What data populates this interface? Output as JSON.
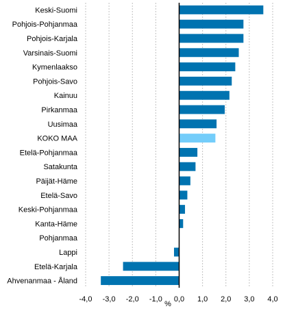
{
  "chart_data": {
    "type": "bar",
    "orientation": "horizontal",
    "title": "",
    "xlabel": "%",
    "ylabel": "",
    "xlim": [
      -4.0,
      4.0
    ],
    "x_ticks": [
      "-4,0",
      "-3,0",
      "-2,0",
      "-1,0",
      "0,0",
      "1,0",
      "2,0",
      "3,0",
      "4,0"
    ],
    "grid": "vertical-dashed",
    "legend": "none",
    "categories": [
      "Keski-Suomi",
      "Pohjois-Pohjanmaa",
      "Pohjois-Karjala",
      "Varsinais-Suomi",
      "Kymenlaakso",
      "Pohjois-Savo",
      "Kainuu",
      "Pirkanmaa",
      "Uusimaa",
      "KOKO MAA",
      "Etelä-Pohjanmaa",
      "Satakunta",
      "Päijät-Häme",
      "Etelä-Savo",
      "Keski-Pohjanmaa",
      "Kanta-Häme",
      "Pohjanmaa",
      "Lappi",
      "Etelä-Karjala",
      "Ahvenanmaa - Åland"
    ],
    "values": [
      3.6,
      2.75,
      2.75,
      2.55,
      2.4,
      2.25,
      2.15,
      1.95,
      1.6,
      1.55,
      0.78,
      0.7,
      0.48,
      0.35,
      0.25,
      0.17,
      0.0,
      -0.22,
      -2.4,
      -3.35
    ],
    "highlight_category": "KOKO MAA",
    "colors": {
      "bar": "#0073b0",
      "highlight": "#74cdfa",
      "grid": "#c0c0c0",
      "axis": "#000000"
    }
  }
}
